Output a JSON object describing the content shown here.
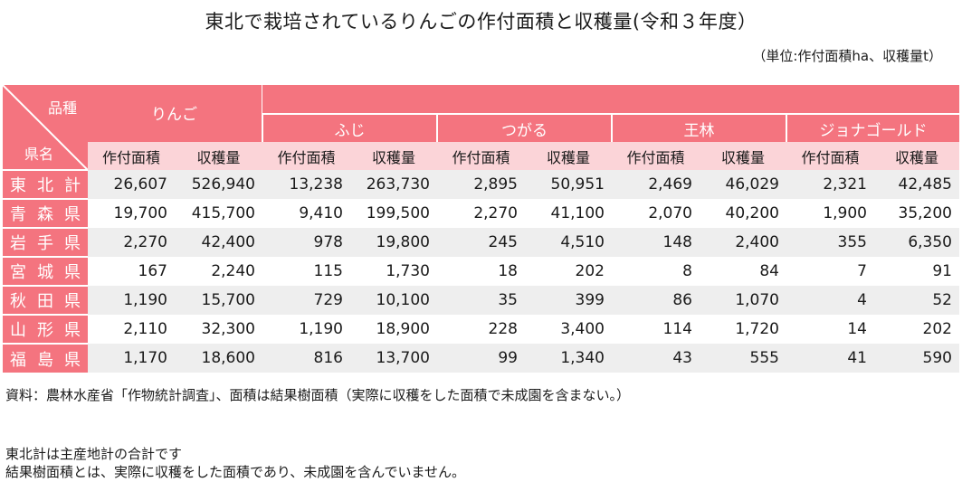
{
  "title": "東北で栽培されているりんごの作付面積と収穫量(令和３年度）",
  "unit": "（単位:作付面積ha、収穫量t）",
  "table": {
    "corner_top": "品種",
    "corner_bottom": "県名",
    "group": "りんご",
    "varieties": [
      "ふじ",
      "つがる",
      "王林",
      "ジョナゴールド"
    ],
    "sub_headers": [
      "作付面積",
      "収穫量",
      "作付面積",
      "収穫量",
      "作付面積",
      "収穫量",
      "作付面積",
      "収穫量",
      "作付面積",
      "収穫量"
    ],
    "rows": [
      {
        "pref": "東北計",
        "values": [
          "26,607",
          "526,940",
          "13,238",
          "263,730",
          "2,895",
          "50,951",
          "2,469",
          "46,029",
          "2,321",
          "42,485"
        ]
      },
      {
        "pref": "青森県",
        "values": [
          "19,700",
          "415,700",
          "9,410",
          "199,500",
          "2,270",
          "41,100",
          "2,070",
          "40,200",
          "1,900",
          "35,200"
        ]
      },
      {
        "pref": "岩手県",
        "values": [
          "2,270",
          "42,400",
          "978",
          "19,800",
          "245",
          "4,510",
          "148",
          "2,400",
          "355",
          "6,350"
        ]
      },
      {
        "pref": "宮城県",
        "values": [
          "167",
          "2,240",
          "115",
          "1,730",
          "18",
          "202",
          "8",
          "84",
          "7",
          "91"
        ]
      },
      {
        "pref": "秋田県",
        "values": [
          "1,190",
          "15,700",
          "729",
          "10,100",
          "35",
          "399",
          "86",
          "1,070",
          "4",
          "52"
        ]
      },
      {
        "pref": "山形県",
        "values": [
          "2,110",
          "32,300",
          "1,190",
          "18,900",
          "228",
          "3,400",
          "114",
          "1,720",
          "14",
          "202"
        ]
      },
      {
        "pref": "福島県",
        "values": [
          "1,170",
          "18,600",
          "816",
          "13,700",
          "99",
          "1,340",
          "43",
          "555",
          "41",
          "590"
        ]
      }
    ]
  },
  "notes": {
    "source": "資料：農林水産省「作物統計調査」、面積は結果樹面積（実際に収穫をした面積で未成園を含まない。）",
    "line1": "東北計は主産地計の合計です",
    "line2": "結果樹面積とは、実際に収穫をした面積であり、未成園を含んでいません。"
  },
  "colors": {
    "header_red": "#f4747f",
    "header_pink": "#fbd4d8",
    "row_gray": "#eeeeee"
  }
}
